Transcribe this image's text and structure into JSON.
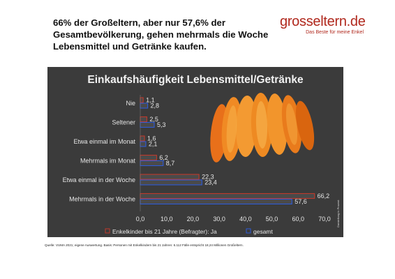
{
  "headline": "66% der Großeltern, aber nur 57,6% der Gesamtbevölkerung, gehen mehrmals die Woche Lebensmittel und Getränke kaufen.",
  "brand": {
    "name": "grosseltern.de",
    "tagline": "Das Beste für meine Enkel"
  },
  "source": "Quelle: VUMA 2021; eigene Auswertung. Basis: Personen mit Enkelkindern bis 21 Jahren: 6.112 Fälle entspricht 18,24 Millionen Großeltern.",
  "side_note": "Darstellung in Prozent",
  "colors": {
    "background": "#3b3b3b",
    "enkel": "#c0392b",
    "gesamt": "#2e5bd8",
    "bar_fill": "#4a4a4a"
  },
  "chart_data": {
    "type": "bar",
    "orientation": "horizontal",
    "title": "Einkaufshäufigkeit Lebensmittel/Getränke",
    "categories": [
      "Nie",
      "Seltener",
      "Etwa einmal im Monat",
      "Mehrmals im Monat",
      "Etwa einmal in der Woche",
      "Mehrmals in der Woche"
    ],
    "series": [
      {
        "name": "Enkelkinder bis 21 Jahre (Befragter): Ja",
        "values": [
          1.1,
          2.5,
          1.6,
          6.2,
          22.3,
          66.2
        ],
        "labels": [
          "1,1",
          "2,5",
          "1,6",
          "6,2",
          "22,3",
          "66,2"
        ]
      },
      {
        "name": "gesamt",
        "values": [
          2.8,
          5.3,
          2.1,
          8.7,
          23.4,
          57.6
        ],
        "labels": [
          "2,8",
          "5,3",
          "2,1",
          "8,7",
          "23,4",
          "57,6"
        ]
      }
    ],
    "xlim": [
      0,
      70
    ],
    "xticks": [
      "0,0",
      "10,0",
      "20,0",
      "30,0",
      "40,0",
      "50,0",
      "60,0",
      "70,0"
    ],
    "legend": "bottom",
    "image": "orange-slices"
  }
}
